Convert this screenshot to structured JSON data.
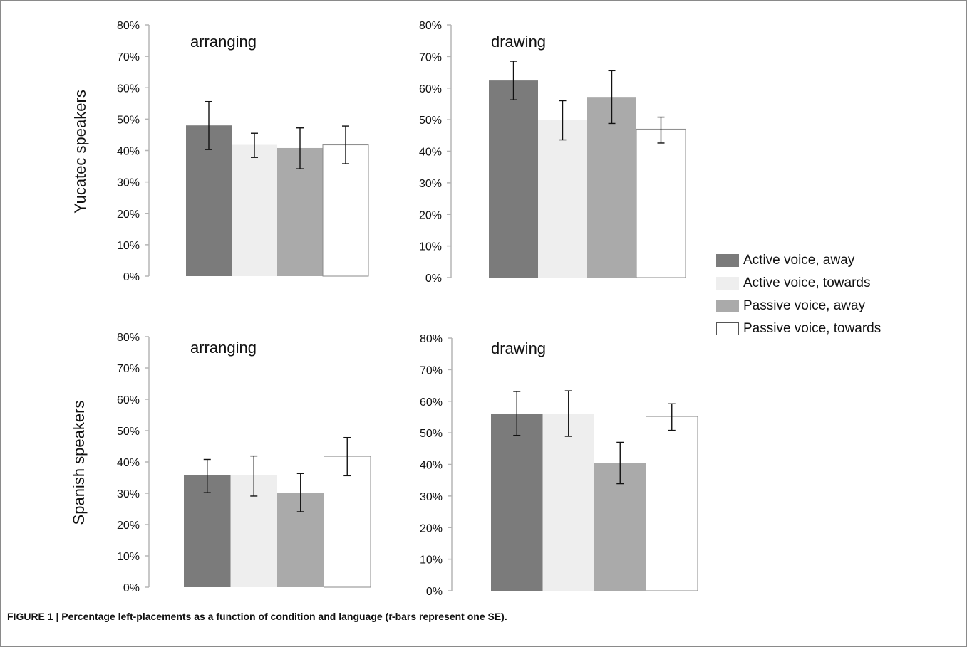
{
  "chart_data": {
    "type": "bar",
    "y_tick_labels": [
      "0%",
      "10%",
      "20%",
      "30%",
      "40%",
      "50%",
      "60%",
      "70%",
      "80%"
    ],
    "ylim": [
      0,
      80
    ],
    "legend": {
      "placement": "right",
      "entries": [
        {
          "label": "Active voice, away",
          "color": "#7b7b7b"
        },
        {
          "label": "Active voice, towards",
          "color": "#eeeeee"
        },
        {
          "label": "Passive voice, away",
          "color": "#aaaaaa"
        },
        {
          "label": "Passive voice, towards",
          "color": "#ffffff"
        }
      ]
    },
    "rows": [
      {
        "label": "Yucatec speakers"
      },
      {
        "label": "Spanish speakers"
      }
    ],
    "panels": [
      {
        "row": "Yucatec speakers",
        "title": "arranging",
        "series": [
          {
            "name": "Active voice, away",
            "value": 48,
            "se_low": 40.3,
            "se_high": 55.6
          },
          {
            "name": "Active voice, towards",
            "value": 41.8,
            "se_low": 37.8,
            "se_high": 45.5
          },
          {
            "name": "Passive voice, away",
            "value": 40.8,
            "se_low": 34.2,
            "se_high": 47.2
          },
          {
            "name": "Passive voice, towards",
            "value": 41.8,
            "se_low": 35.8,
            "se_high": 47.8
          }
        ]
      },
      {
        "row": "Yucatec speakers",
        "title": "drawing",
        "series": [
          {
            "name": "Active voice, away",
            "value": 62.4,
            "se_low": 56.3,
            "se_high": 68.5
          },
          {
            "name": "Active voice, towards",
            "value": 49.8,
            "se_low": 43.6,
            "se_high": 56
          },
          {
            "name": "Passive voice, away",
            "value": 57.2,
            "se_low": 48.8,
            "se_high": 65.5
          },
          {
            "name": "Passive voice, towards",
            "value": 47,
            "se_low": 42.6,
            "se_high": 50.8
          }
        ]
      },
      {
        "row": "Spanish speakers",
        "title": "arranging",
        "series": [
          {
            "name": "Active voice, away",
            "value": 35.7,
            "se_low": 30.2,
            "se_high": 40.8
          },
          {
            "name": "Active voice, towards",
            "value": 35.7,
            "se_low": 29.1,
            "se_high": 41.9
          },
          {
            "name": "Passive voice, away",
            "value": 30.2,
            "se_low": 24.1,
            "se_high": 36.3
          },
          {
            "name": "Passive voice, towards",
            "value": 41.8,
            "se_low": 35.6,
            "se_high": 47.8
          }
        ]
      },
      {
        "row": "Spanish speakers",
        "title": "drawing",
        "series": [
          {
            "name": "Active voice, away",
            "value": 56.1,
            "se_low": 49.2,
            "se_high": 63.1
          },
          {
            "name": "Active voice, towards",
            "value": 56.1,
            "se_low": 48.9,
            "se_high": 63.3
          },
          {
            "name": "Passive voice, away",
            "value": 40.5,
            "se_low": 33.9,
            "se_high": 47
          },
          {
            "name": "Passive voice, towards",
            "value": 55.2,
            "se_low": 50.8,
            "se_high": 59.2
          }
        ]
      }
    ]
  },
  "caption": {
    "prefix": "FIGURE 1 | Percentage left-placements as a function of condition and language (",
    "italic": "t",
    "suffix": "-bars represent one SE)."
  }
}
